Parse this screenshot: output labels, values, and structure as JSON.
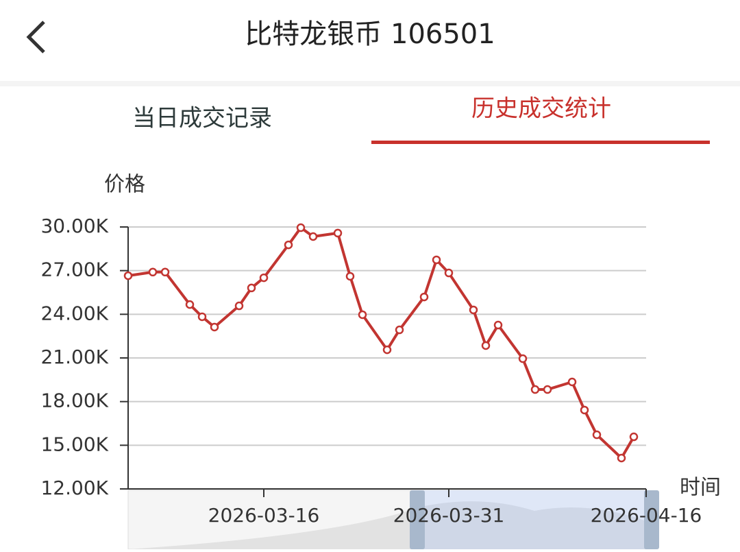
{
  "header": {
    "title": "比特龙银币 106501"
  },
  "tabs": [
    "当日成交记录",
    "历史成交统计"
  ],
  "chart_data": {
    "type": "line",
    "y_axis_label": "价格",
    "x_axis_label": "时间",
    "x": [
      "2026-03-05",
      "2026-03-07",
      "2026-03-08",
      "2026-03-10",
      "2026-03-11",
      "2026-03-12",
      "2026-03-14",
      "2026-03-15",
      "2026-03-16",
      "2026-03-18",
      "2026-03-19",
      "2026-03-20",
      "2026-03-22",
      "2026-03-23",
      "2026-03-24",
      "2026-03-26",
      "2026-03-27",
      "2026-03-29",
      "2026-03-30",
      "2026-03-31",
      "2026-04-02",
      "2026-04-03",
      "2026-04-04",
      "2026-04-06",
      "2026-04-07",
      "2026-04-08",
      "2026-04-10",
      "2026-04-11",
      "2026-04-12",
      "2026-04-14",
      "2026-04-15"
    ],
    "series": [
      {
        "color": "#c23531",
        "values": [
          26650,
          26900,
          26900,
          24670,
          23830,
          23120,
          24580,
          25810,
          26510,
          28770,
          29950,
          29340,
          29580,
          26610,
          23970,
          21560,
          22930,
          25190,
          27740,
          26840,
          24300,
          21850,
          23260,
          20950,
          18830,
          18830,
          19350,
          17420,
          15720,
          14120,
          15580
        ]
      }
    ],
    "xlim": [
      "2026-03-05",
      "2026-04-16"
    ],
    "xticks": [
      "2026-03-16",
      "2026-03-31",
      "2026-04-16"
    ],
    "ylim": [
      12000,
      30000
    ],
    "yticks": [
      {
        "value": 12000,
        "label": "12.00K"
      },
      {
        "value": 15000,
        "label": "15.00K"
      },
      {
        "value": 18000,
        "label": "18.00K"
      },
      {
        "value": 21000,
        "label": "21.00K"
      },
      {
        "value": 24000,
        "label": "24.00K"
      },
      {
        "value": 27000,
        "label": "27.00K"
      },
      {
        "value": 30000,
        "label": "30.00K"
      }
    ],
    "grid": true
  }
}
